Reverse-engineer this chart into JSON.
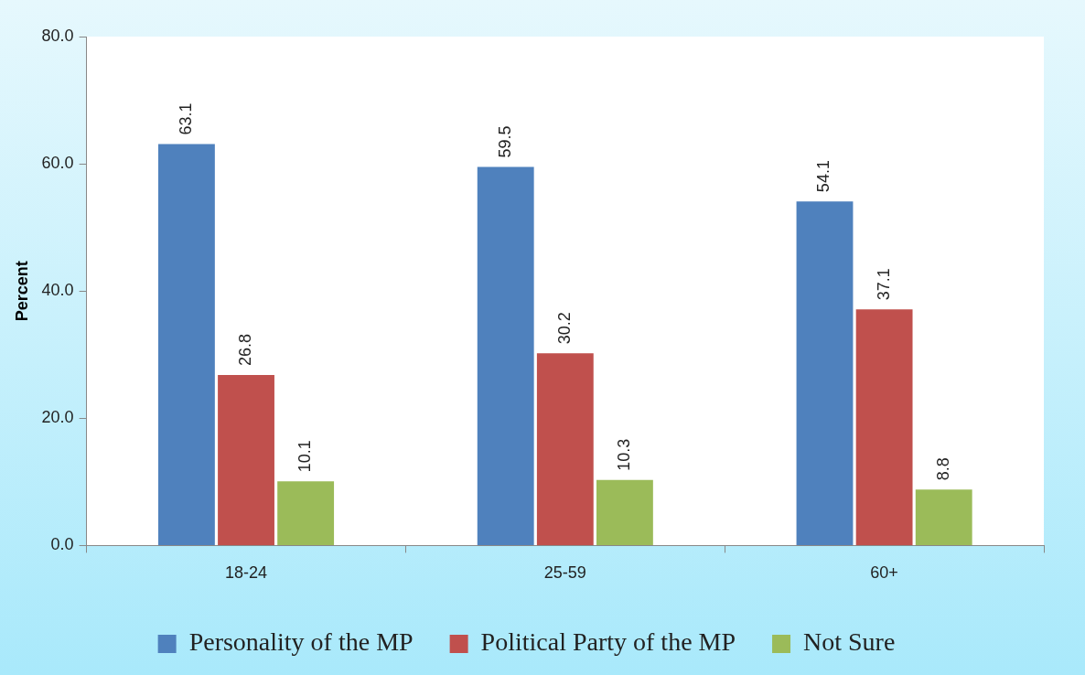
{
  "chart_data": {
    "type": "bar",
    "ylabel": "Percent",
    "categories": [
      "18-24",
      "25-59",
      "60+"
    ],
    "series": [
      {
        "name": "Personality of the MP",
        "color": "#4f81bd",
        "values": [
          63.1,
          59.5,
          54.1
        ]
      },
      {
        "name": "Political Party of the MP",
        "color": "#c0504d",
        "values": [
          26.8,
          30.2,
          37.1
        ]
      },
      {
        "name": "Not Sure",
        "color": "#9bbb59",
        "values": [
          10.1,
          10.3,
          8.8
        ]
      }
    ],
    "ylim": [
      0,
      80
    ],
    "yticks": [
      {
        "value": 0,
        "label": "0.0"
      },
      {
        "value": 20,
        "label": "20.0"
      },
      {
        "value": 40,
        "label": "40.0"
      },
      {
        "value": 60,
        "label": "60.0"
      },
      {
        "value": 80,
        "label": "80.0"
      }
    ],
    "grid": false,
    "legend": "bottom",
    "data_labels": true
  }
}
